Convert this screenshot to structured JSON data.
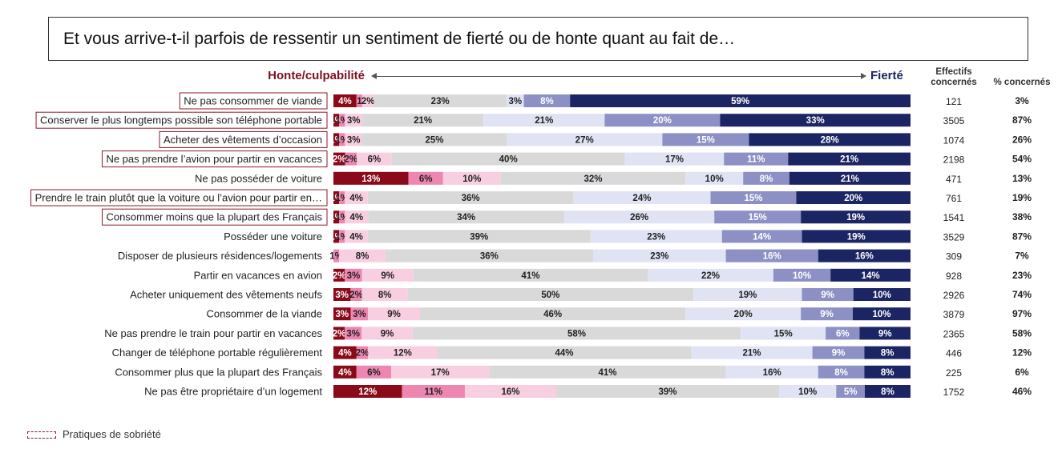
{
  "question": "Et vous arrive-t-il parfois de ressentir un sentiment de fierté ou de honte quant au fait de…",
  "scale": {
    "left_label": "Honte/culpabilité",
    "right_label": "Fierté"
  },
  "columns": {
    "effectifs": "Effectifs concernés",
    "pct": "% concernés"
  },
  "legend": {
    "label": "Pratiques de sobriété"
  },
  "colors": {
    "scale": [
      "#8b0a1a",
      "#ee86b2",
      "#f8cfe0",
      "#d9d9d9",
      "#dfe3f4",
      "#8c90c4",
      "#1b2563"
    ],
    "frame": "#8b1a2a"
  },
  "chart_data": {
    "type": "bar",
    "orientation": "horizontal-stacked-100",
    "segment_order": [
      "honte-forte",
      "honte-moyenne",
      "honte-faible",
      "neutre",
      "fierte-faible",
      "fierte-moyenne",
      "fierte-forte"
    ],
    "rows": [
      {
        "label": "Ne pas consommer de viande",
        "sobriety": true,
        "values": [
          4,
          1,
          2,
          23,
          3,
          8,
          59
        ],
        "labels": [
          "4%",
          "1",
          "2%",
          "23%",
          "3%",
          "8%",
          "59%"
        ],
        "effectifs": "121",
        "pct": "3%"
      },
      {
        "label": "Conserver le plus longtemps possible son téléphone portable",
        "sobriety": true,
        "values": [
          1,
          1,
          3,
          21,
          21,
          20,
          33
        ],
        "labels": [
          "1%",
          "1%",
          "3%",
          "21%",
          "21%",
          "20%",
          "33%"
        ],
        "effectifs": "3505",
        "pct": "87%"
      },
      {
        "label": "Acheter des vêtements d’occasion",
        "sobriety": true,
        "values": [
          1,
          1,
          3,
          25,
          27,
          15,
          28
        ],
        "labels": [
          "1%",
          "1%",
          "3%",
          "25%",
          "27%",
          "15%",
          "28%"
        ],
        "effectifs": "1074",
        "pct": "26%"
      },
      {
        "label": "Ne pas prendre l’avion pour partir en vacances",
        "sobriety": true,
        "values": [
          2,
          2,
          6,
          40,
          17,
          11,
          21
        ],
        "labels": [
          "2%",
          "2%",
          "6%",
          "40%",
          "17%",
          "11%",
          "21%"
        ],
        "effectifs": "2198",
        "pct": "54%"
      },
      {
        "label": "Ne pas posséder de voiture",
        "sobriety": false,
        "values": [
          13,
          6,
          10,
          32,
          10,
          8,
          21
        ],
        "labels": [
          "13%",
          "6%",
          "10%",
          "32%",
          "10%",
          "8%",
          "21%"
        ],
        "effectifs": "471",
        "pct": "13%"
      },
      {
        "label": "Prendre le train plutôt que la voiture ou l’avion pour partir en…",
        "sobriety": true,
        "values": [
          1,
          1,
          4,
          36,
          24,
          15,
          20
        ],
        "labels": [
          "1%",
          "1%",
          "4%",
          "36%",
          "24%",
          "15%",
          "20%"
        ],
        "effectifs": "761",
        "pct": "19%"
      },
      {
        "label": "Consommer moins que la plupart des Français",
        "sobriety": true,
        "values": [
          1,
          1,
          4,
          34,
          26,
          15,
          19
        ],
        "labels": [
          "1%",
          "1%",
          "4%",
          "34%",
          "26%",
          "15%",
          "19%"
        ],
        "effectifs": "1541",
        "pct": "38%"
      },
      {
        "label": "Posséder une voiture",
        "sobriety": false,
        "values": [
          1,
          1,
          4,
          39,
          23,
          14,
          19
        ],
        "labels": [
          "1%",
          "1%",
          "4%",
          "39%",
          "23%",
          "14%",
          "19%"
        ],
        "effectifs": "3529",
        "pct": "87%"
      },
      {
        "label": "Disposer de plusieurs résidences/logements",
        "sobriety": false,
        "values": [
          0,
          1,
          8,
          36,
          23,
          16,
          16
        ],
        "labels": [
          "",
          "1%",
          "8%",
          "36%",
          "23%",
          "16%",
          "16%"
        ],
        "effectifs": "309",
        "pct": "7%"
      },
      {
        "label": "Partir en vacances en avion",
        "sobriety": false,
        "values": [
          2,
          3,
          9,
          41,
          22,
          10,
          14
        ],
        "labels": [
          "2%",
          "3%",
          "9%",
          "41%",
          "22%",
          "10%",
          "14%"
        ],
        "effectifs": "928",
        "pct": "23%"
      },
      {
        "label": "Acheter uniquement des vêtements neufs",
        "sobriety": false,
        "values": [
          3,
          2,
          8,
          50,
          19,
          9,
          10
        ],
        "labels": [
          "3%",
          "2%",
          "8%",
          "50%",
          "19%",
          "9%",
          "10%"
        ],
        "effectifs": "2926",
        "pct": "74%"
      },
      {
        "label": "Consommer de la viande",
        "sobriety": false,
        "values": [
          3,
          3,
          9,
          46,
          20,
          9,
          10
        ],
        "labels": [
          "3%",
          "3%",
          "9%",
          "46%",
          "20%",
          "9%",
          "10%"
        ],
        "effectifs": "3879",
        "pct": "97%"
      },
      {
        "label": "Ne pas prendre le train pour partir en vacances",
        "sobriety": false,
        "values": [
          2,
          3,
          9,
          58,
          15,
          6,
          9
        ],
        "labels": [
          "2%",
          "3%",
          "9%",
          "58%",
          "15%",
          "6%",
          "9%"
        ],
        "effectifs": "2365",
        "pct": "58%"
      },
      {
        "label": "Changer de téléphone portable régulièrement",
        "sobriety": false,
        "values": [
          4,
          2,
          12,
          44,
          21,
          9,
          8
        ],
        "labels": [
          "4%",
          "2%",
          "12%",
          "44%",
          "21%",
          "9%",
          "8%"
        ],
        "effectifs": "446",
        "pct": "12%"
      },
      {
        "label": "Consommer plus que la plupart des Français",
        "sobriety": false,
        "values": [
          4,
          6,
          17,
          41,
          16,
          8,
          8
        ],
        "labels": [
          "4%",
          "6%",
          "17%",
          "41%",
          "16%",
          "8%",
          "8%"
        ],
        "effectifs": "225",
        "pct": "6%"
      },
      {
        "label": "Ne pas être propriétaire d’un logement",
        "sobriety": false,
        "values": [
          12,
          11,
          16,
          39,
          10,
          5,
          8
        ],
        "labels": [
          "12%",
          "11%",
          "16%",
          "39%",
          "10%",
          "5%",
          "8%"
        ],
        "effectifs": "1752",
        "pct": "46%"
      }
    ]
  }
}
